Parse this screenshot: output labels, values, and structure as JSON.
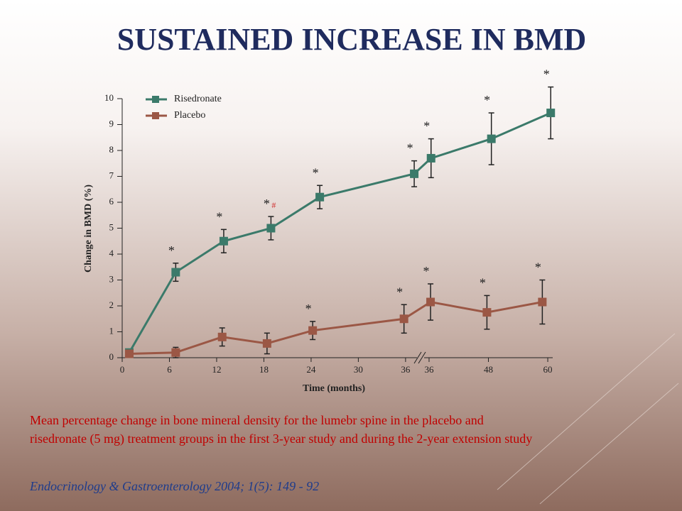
{
  "title": "SUSTAINED INCREASE IN BMD",
  "chart_data": {
    "type": "line",
    "y_label": "Change in BMD (%)",
    "x_label": "Time (months)",
    "ylim": [
      0,
      10
    ],
    "yticks": [
      0,
      1,
      2,
      3,
      4,
      5,
      6,
      7,
      8,
      9,
      10
    ],
    "x_segments": [
      {
        "xlim": [
          0,
          37.5
        ],
        "xticks": [
          0,
          6,
          12,
          18,
          24,
          30,
          36
        ]
      },
      {
        "xlim": [
          35,
          61
        ],
        "xticks": [
          36,
          48,
          60
        ]
      }
    ],
    "series": [
      {
        "name": "Risedronate",
        "color": "#3b7a6a",
        "x": [
          0.9,
          6.8,
          12.9,
          18.9,
          25.1,
          37.1,
          36.4,
          48.6,
          60.6
        ],
        "segment": [
          0,
          0,
          0,
          0,
          0,
          0,
          1,
          1,
          1
        ],
        "values": [
          0.2,
          3.3,
          4.5,
          5.0,
          6.2,
          7.1,
          7.7,
          8.45,
          9.45
        ],
        "errors": [
          null,
          0.35,
          0.45,
          0.45,
          0.45,
          0.5,
          0.75,
          1.0,
          1.0
        ],
        "point_labels": [
          null,
          "*",
          "*",
          "*",
          "*",
          "*",
          "*",
          "*",
          "*"
        ]
      },
      {
        "name": "Placebo",
        "color": "#9b5745",
        "x": [
          0.9,
          6.8,
          12.7,
          18.4,
          24.2,
          35.8,
          36.3,
          47.7,
          58.9
        ],
        "segment": [
          0,
          0,
          0,
          0,
          0,
          0,
          1,
          1,
          1
        ],
        "values": [
          0.15,
          0.2,
          0.8,
          0.55,
          1.05,
          1.5,
          2.15,
          1.75,
          2.15
        ],
        "errors": [
          null,
          0.2,
          0.35,
          0.4,
          0.35,
          0.55,
          0.7,
          0.65,
          0.85
        ],
        "point_labels": [
          null,
          null,
          null,
          null,
          "*",
          "*",
          "*",
          "*",
          "*"
        ]
      }
    ],
    "annotations": [
      {
        "text": "#",
        "series": 0,
        "index": 3,
        "color": "#d03030"
      }
    ]
  },
  "caption": [
    "Mean percentage  change  in bone mineral density  for the lumebr spine  in the placebo  and",
    "risedronate (5 mg) treatment  groups in the first 3-year study and during the 2-year extension study"
  ],
  "citation": "Endocrinology & Gastroenterology 2004; 1(5): 149 - 92"
}
